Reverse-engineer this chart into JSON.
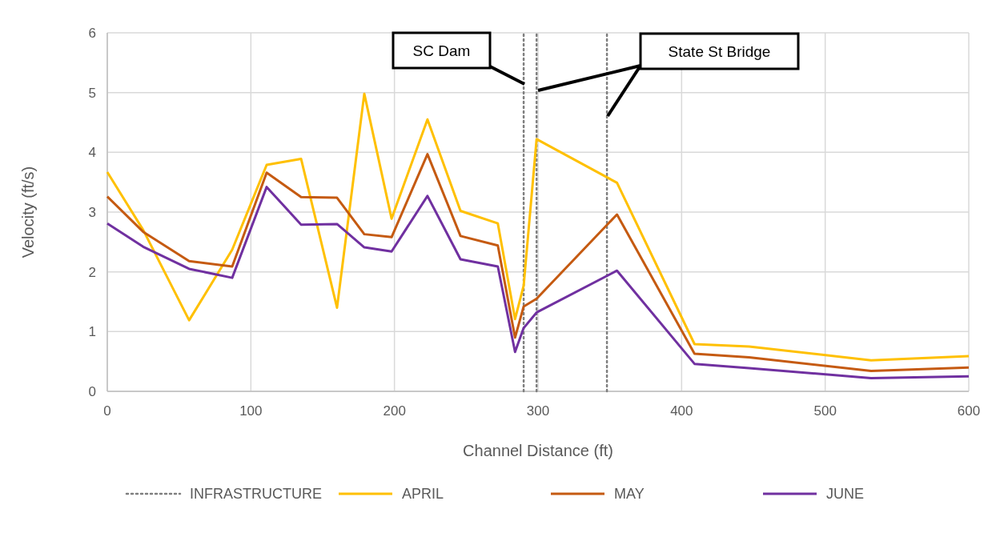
{
  "chart_data": {
    "type": "line",
    "xlabel": "Channel Distance (ft)",
    "ylabel": "Velocity (ft/s)",
    "xlim": [
      0,
      600
    ],
    "xticks": [
      0,
      100,
      200,
      300,
      400,
      500,
      600
    ],
    "ylim": [
      0,
      6
    ],
    "yticks": [
      0,
      1,
      2,
      3,
      4,
      5,
      6
    ],
    "grid": true,
    "legend": "bottom",
    "series": [
      {
        "name": "INFRASTRUCTURE",
        "color": "#7f7f7f",
        "line_style": "dotted",
        "x": [
          290,
          290,
          null,
          299,
          299,
          null,
          348,
          348
        ],
        "values": [
          0,
          6,
          null,
          0,
          6,
          null,
          0,
          6
        ]
      },
      {
        "name": "APRIL",
        "color": "#ffc000",
        "x": [
          0,
          25,
          57,
          87,
          111,
          135,
          160,
          179,
          198,
          223,
          246,
          272,
          284,
          290,
          299,
          355,
          409,
          447,
          532,
          600
        ],
        "values": [
          3.67,
          2.7,
          1.19,
          2.37,
          3.79,
          3.89,
          1.4,
          4.98,
          2.89,
          4.55,
          3.02,
          2.81,
          1.21,
          1.77,
          4.22,
          3.49,
          0.79,
          0.75,
          0.52,
          0.59
        ]
      },
      {
        "name": "MAY",
        "color": "#c55a11",
        "x": [
          0,
          25,
          57,
          87,
          111,
          135,
          160,
          179,
          198,
          223,
          246,
          272,
          284,
          290,
          299,
          355,
          409,
          447,
          532,
          600
        ],
        "values": [
          3.26,
          2.67,
          2.18,
          2.09,
          3.66,
          3.25,
          3.24,
          2.63,
          2.58,
          3.97,
          2.6,
          2.44,
          0.9,
          1.42,
          1.55,
          2.96,
          0.63,
          0.57,
          0.34,
          0.4
        ]
      },
      {
        "name": "JUNE",
        "color": "#7030a0",
        "x": [
          0,
          25,
          57,
          87,
          111,
          135,
          160,
          179,
          198,
          223,
          246,
          272,
          284,
          290,
          299,
          355,
          409,
          447,
          532,
          600
        ],
        "values": [
          2.81,
          2.42,
          2.05,
          1.9,
          3.42,
          2.79,
          2.8,
          2.41,
          2.34,
          3.27,
          2.21,
          2.09,
          0.66,
          1.06,
          1.32,
          2.02,
          0.46,
          0.39,
          0.22,
          0.25
        ]
      }
    ],
    "annotations": [
      "SC Dam",
      "State St Bridge"
    ]
  }
}
